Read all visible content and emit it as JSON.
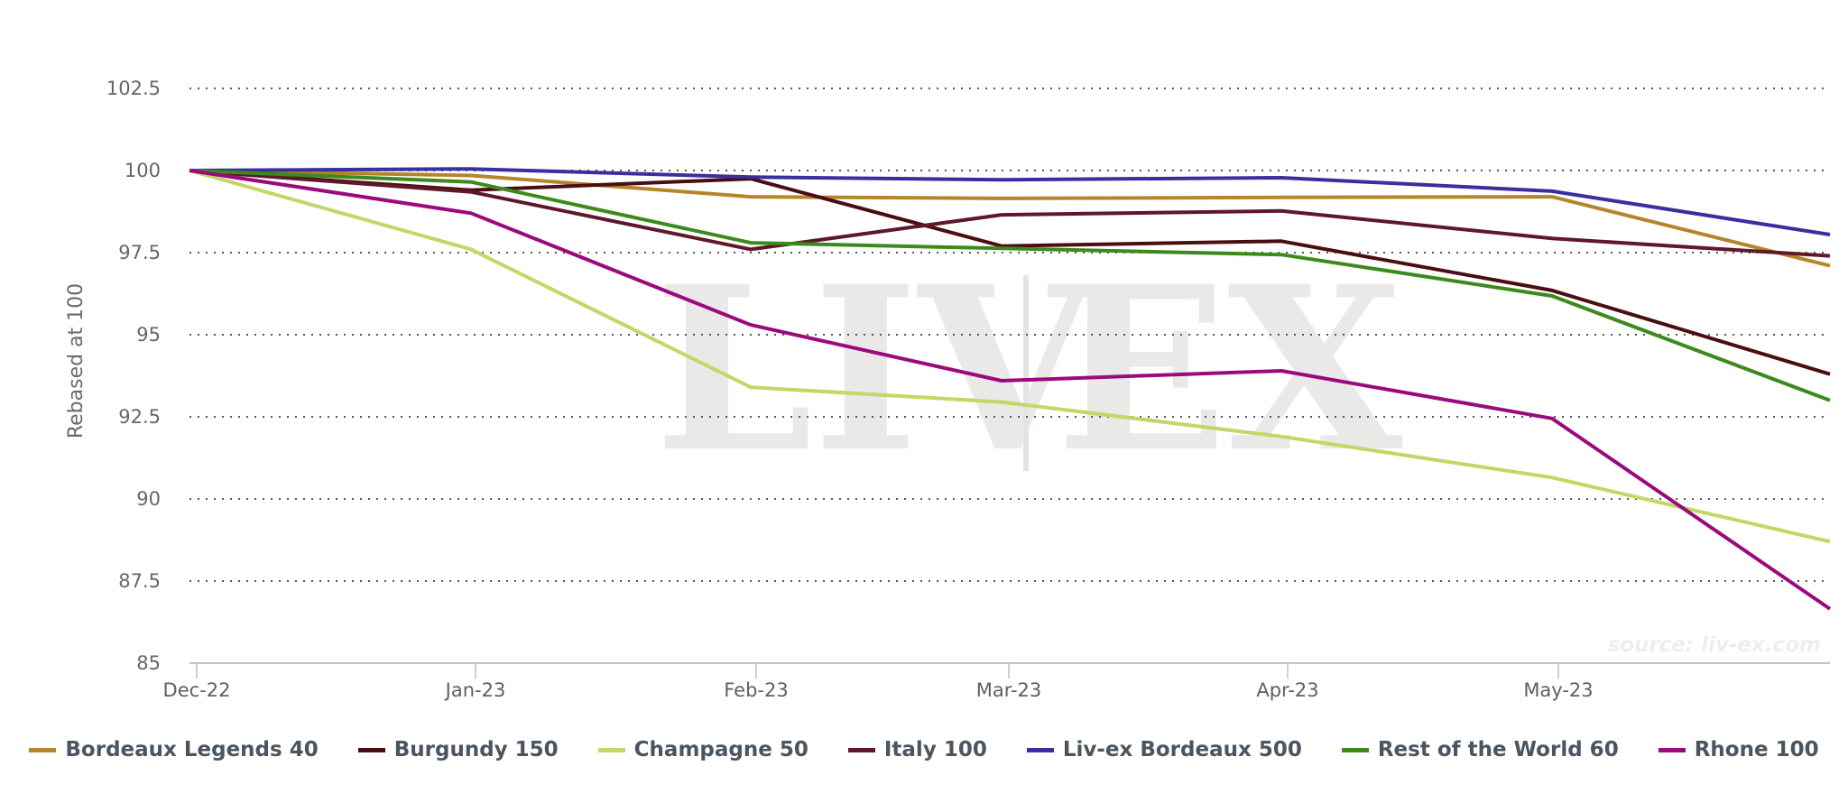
{
  "chart_data": {
    "type": "line",
    "title": "",
    "xlabel": "",
    "ylabel": "Rebased at 100",
    "ylim": [
      85,
      103
    ],
    "yticks": [
      "85",
      "87.5",
      "90",
      "92.5",
      "95",
      "97.5",
      "100",
      "102.5"
    ],
    "x": [
      "Dec-22",
      "Jan-23",
      "Feb-23",
      "Mar-23",
      "Apr-23",
      "May-23",
      ""
    ],
    "xtick_labels": [
      "Dec-22",
      "Jan-23",
      "Feb-23",
      "Mar-23",
      "Apr-23",
      "May-23"
    ],
    "grid": "horizontal dotted",
    "legend_position": "bottom",
    "series": [
      {
        "name": "Bordeaux Legends 40",
        "color": "#b5852a",
        "values": [
          100,
          99.85,
          99.2,
          99.15,
          99.18,
          99.2,
          97.1
        ]
      },
      {
        "name": "Burgundy 150",
        "color": "#4a0e12",
        "values": [
          100,
          99.4,
          99.75,
          97.7,
          97.85,
          96.35,
          93.8
        ]
      },
      {
        "name": "Champagne 50",
        "color": "#c4d665",
        "values": [
          100,
          97.6,
          93.4,
          92.95,
          91.9,
          90.65,
          88.7
        ]
      },
      {
        "name": "Italy 100",
        "color": "#5e1828",
        "values": [
          100,
          99.35,
          97.6,
          98.65,
          98.77,
          97.93,
          97.4
        ]
      },
      {
        "name": "Liv-ex Bordeaux 500",
        "color": "#3a2f9e",
        "values": [
          100,
          100.05,
          99.8,
          99.72,
          99.78,
          99.37,
          98.05
        ]
      },
      {
        "name": "Rest of the World 60",
        "color": "#3c8a1e",
        "values": [
          100,
          99.65,
          97.8,
          97.63,
          97.44,
          96.18,
          93.0
        ]
      },
      {
        "name": "Rhone 100",
        "color": "#9b0a7d",
        "values": [
          100,
          98.7,
          95.3,
          93.6,
          93.9,
          92.45,
          86.65
        ]
      }
    ],
    "annotations": [
      "LIV|EX",
      "source: liv-ex.com"
    ]
  },
  "watermark": {
    "left": "LIV",
    "right": "EX"
  },
  "source_label": "source: liv-ex.com",
  "legend": [
    {
      "label": "Bordeaux Legends 40",
      "color": "#b5852a"
    },
    {
      "label": "Burgundy 150",
      "color": "#4a0e12"
    },
    {
      "label": "Champagne 50",
      "color": "#c4d665"
    },
    {
      "label": "Italy 100",
      "color": "#5e1828"
    },
    {
      "label": "Liv-ex Bordeaux 500",
      "color": "#3a2f9e"
    },
    {
      "label": "Rest of the World 60",
      "color": "#3c8a1e"
    },
    {
      "label": "Rhone 100",
      "color": "#9b0a7d"
    }
  ]
}
